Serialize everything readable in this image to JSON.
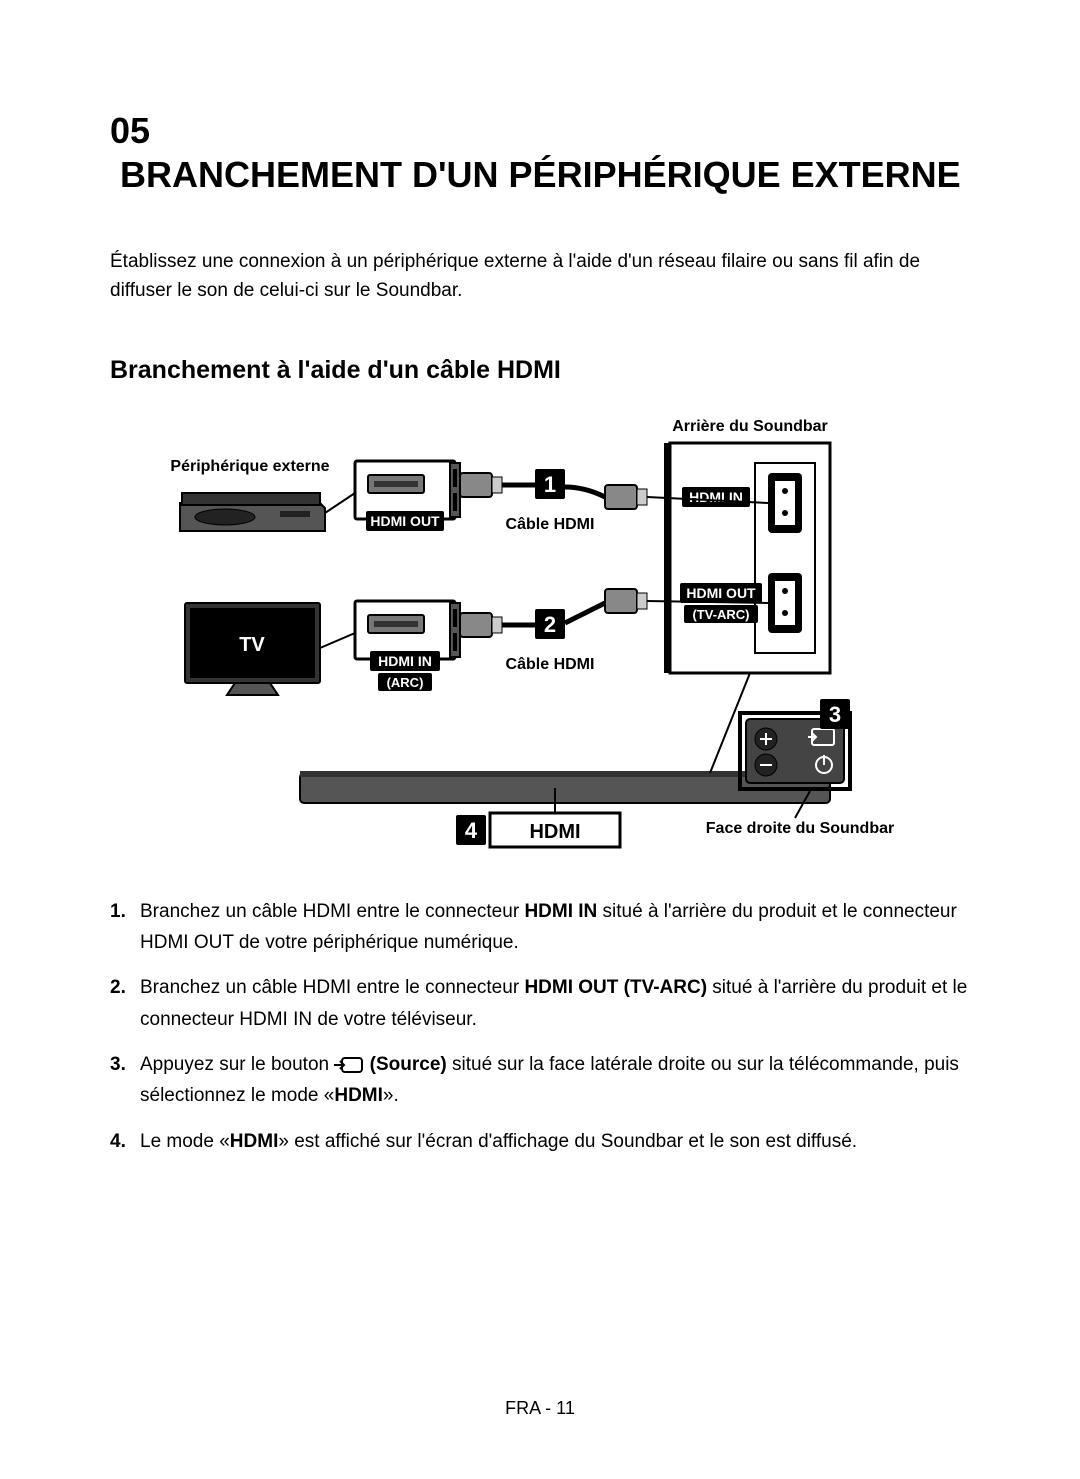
{
  "chapter": {
    "number": "05",
    "title": "BRANCHEMENT D'UN PÉRIPHÉRIQUE EXTERNE"
  },
  "intro": "Établissez une connexion à un périphérique externe à l'aide d'un réseau filaire ou sans fil afin de diffuser le son de celui-ci sur le Soundbar.",
  "section_title": "Branchement à l'aide d'un câble HDMI",
  "diagram": {
    "labels": {
      "external_device": "Périphérique externe",
      "tv": "TV",
      "rear_soundbar": "Arrière du Soundbar",
      "right_soundbar": "Face droite du Soundbar",
      "hdmi_out": "HDMI OUT",
      "hdmi_in": "HDMI IN",
      "hdmi_in_arc": "HDMI IN",
      "arc": "(ARC)",
      "hdmi_out_tvarc": "HDMI OUT",
      "tvarc": "(TV-ARC)",
      "cable_hdmi": "Câble HDMI",
      "display_hdmi": "HDMI",
      "num1": "1",
      "num2": "2",
      "num3": "3",
      "num4": "4"
    },
    "colors": {
      "line": "#000000",
      "fill_dark": "#444444",
      "fill_mid": "#888888",
      "fill_light": "#cccccc",
      "white": "#ffffff",
      "black": "#000000"
    },
    "font_sizes": {
      "label": 16,
      "label_bold": 16,
      "port": 14,
      "display": 20,
      "num": 22
    }
  },
  "steps": [
    {
      "num": "1.",
      "parts": [
        {
          "t": "Branchez un câble HDMI entre le connecteur "
        },
        {
          "t": "HDMI IN",
          "b": true
        },
        {
          "t": " situé à l'arrière du produit et le connecteur HDMI OUT de votre périphérique numérique."
        }
      ]
    },
    {
      "num": "2.",
      "parts": [
        {
          "t": "Branchez un câble HDMI entre le connecteur "
        },
        {
          "t": "HDMI OUT (TV-ARC)",
          "b": true
        },
        {
          "t": " situé à l'arrière du produit et le connecteur HDMI IN de votre téléviseur."
        }
      ]
    },
    {
      "num": "3.",
      "parts": [
        {
          "t": "Appuyez sur le bouton "
        },
        {
          "icon": "source"
        },
        {
          "t": " "
        },
        {
          "t": "(Source)",
          "b": true
        },
        {
          "t": " situé sur la face latérale droite ou sur la télécommande, puis sélectionnez le mode «"
        },
        {
          "t": "HDMI",
          "b": true
        },
        {
          "t": "»."
        }
      ]
    },
    {
      "num": "4.",
      "parts": [
        {
          "t": "Le mode «"
        },
        {
          "t": "HDMI",
          "b": true
        },
        {
          "t": "» est affiché sur l'écran d'affichage du Soundbar et le son est diffusé."
        }
      ]
    }
  ],
  "footer": "FRA - 11"
}
